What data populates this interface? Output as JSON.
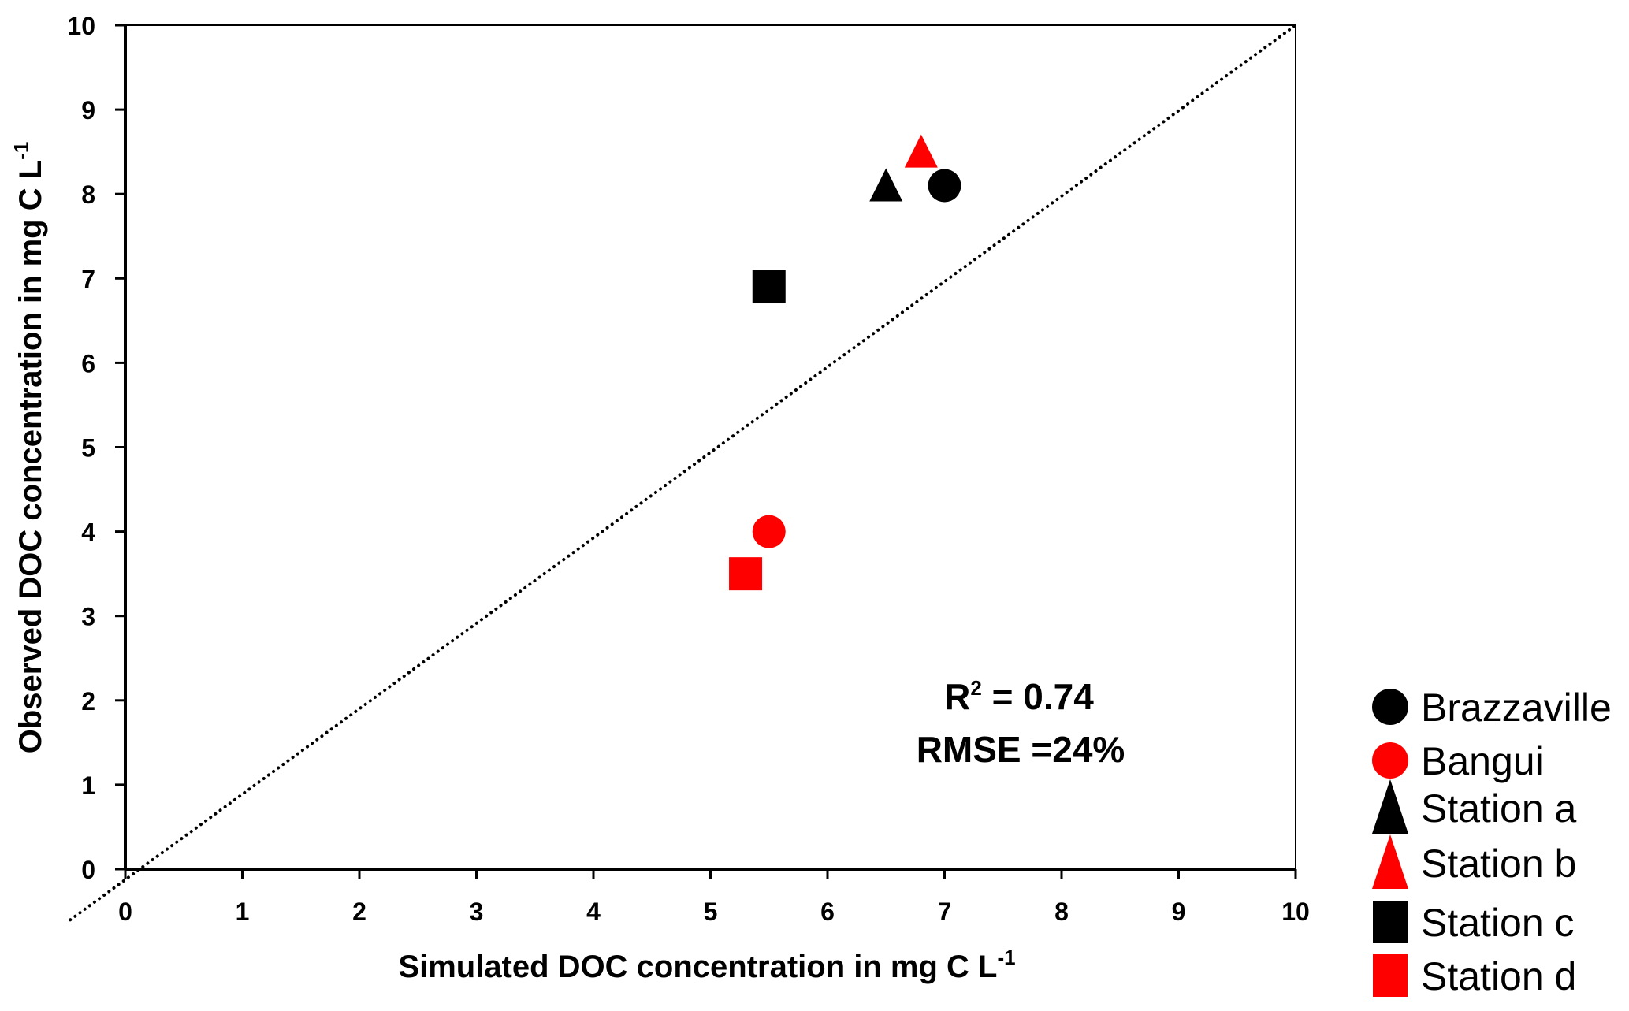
{
  "chart_data": {
    "type": "scatter",
    "title": "",
    "xlabel": "Simulated DOC concentration  in mg C L",
    "xlabel_superscript": "-1",
    "ylabel": "Observed DOC concentration  in mg C L",
    "ylabel_superscript": "-1",
    "xlim": [
      0,
      10
    ],
    "ylim": [
      0,
      10
    ],
    "xticks": [
      "0",
      "1",
      "2",
      "3",
      "4",
      "5",
      "6",
      "7",
      "8",
      "9",
      "10"
    ],
    "yticks": [
      "0",
      "1",
      "2",
      "3",
      "4",
      "5",
      "6",
      "7",
      "8",
      "9",
      "10"
    ],
    "grid": false,
    "legend_position": "bottom-right-outside",
    "reference_line": {
      "name": "1:1 line",
      "style": "dotted",
      "x": [
        -0.47,
        10
      ],
      "y": [
        -0.6,
        10
      ]
    },
    "annotations": [
      {
        "text_main": "R",
        "text_sup": "2",
        "text_rest": " = 0.74"
      },
      {
        "text_main": "RMSE =24%",
        "text_sup": "",
        "text_rest": ""
      }
    ],
    "series": [
      {
        "name": "Brazzaville",
        "marker": "circle",
        "color": "#000000",
        "x": [
          7.0
        ],
        "y": [
          8.1
        ]
      },
      {
        "name": "Bangui",
        "marker": "circle",
        "color": "#ff0000",
        "x": [
          5.5
        ],
        "y": [
          4.0
        ]
      },
      {
        "name": "Station a",
        "marker": "triangle",
        "color": "#000000",
        "x": [
          6.5
        ],
        "y": [
          8.1
        ]
      },
      {
        "name": "Station b",
        "marker": "triangle",
        "color": "#ff0000",
        "x": [
          6.8
        ],
        "y": [
          8.5
        ]
      },
      {
        "name": "Station c",
        "marker": "square",
        "color": "#000000",
        "x": [
          5.5
        ],
        "y": [
          6.9
        ]
      },
      {
        "name": "Station d",
        "marker": "square",
        "color": "#ff0000",
        "x": [
          5.3
        ],
        "y": [
          3.5
        ]
      }
    ]
  }
}
